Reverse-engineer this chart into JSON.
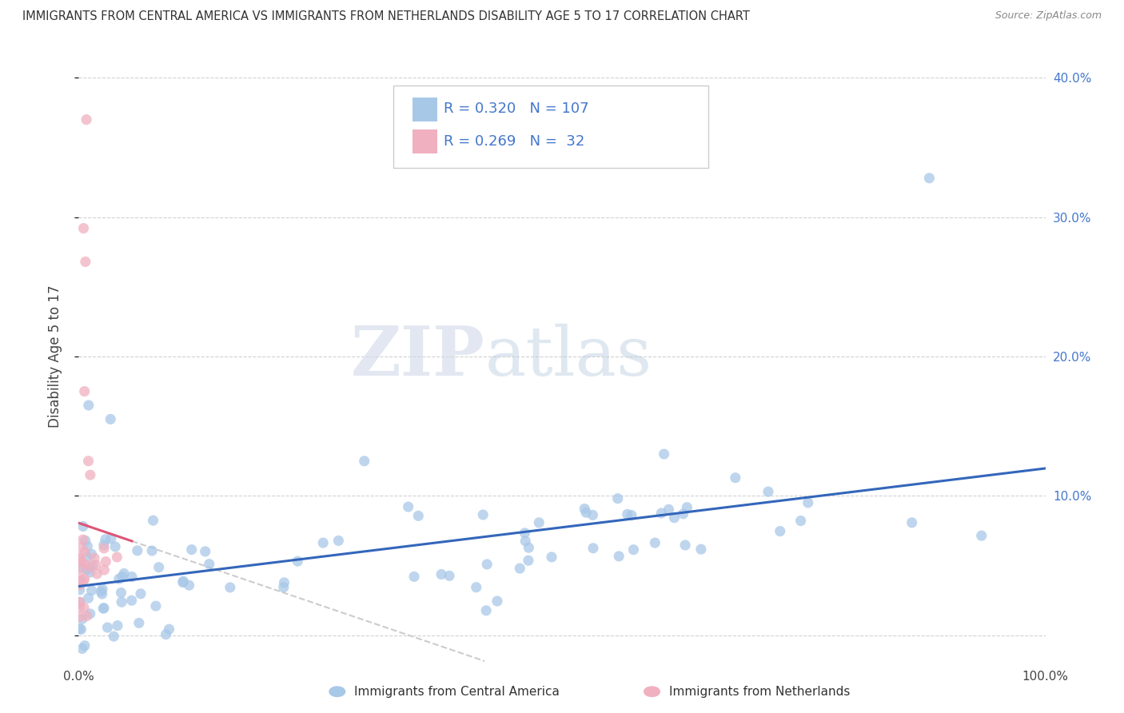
{
  "title": "IMMIGRANTS FROM CENTRAL AMERICA VS IMMIGRANTS FROM NETHERLANDS DISABILITY AGE 5 TO 17 CORRELATION CHART",
  "source": "Source: ZipAtlas.com",
  "ylabel": "Disability Age 5 to 17",
  "xlim": [
    0.0,
    1.0
  ],
  "ylim": [
    -0.02,
    0.42
  ],
  "yticks": [
    0.0,
    0.1,
    0.2,
    0.3,
    0.4
  ],
  "blue_R": 0.32,
  "blue_N": 107,
  "pink_R": 0.269,
  "pink_N": 32,
  "blue_color": "#a8c8e8",
  "pink_color": "#f0b0c0",
  "blue_line_color": "#3366bb",
  "pink_line_color": "#dd5577",
  "watermark_zip": "ZIP",
  "watermark_atlas": "atlas",
  "legend_label_blue": "Immigrants from Central America",
  "legend_label_pink": "Immigrants from Netherlands",
  "right_ytick_color": "#4477cc",
  "left_ytick_color": "#555555"
}
